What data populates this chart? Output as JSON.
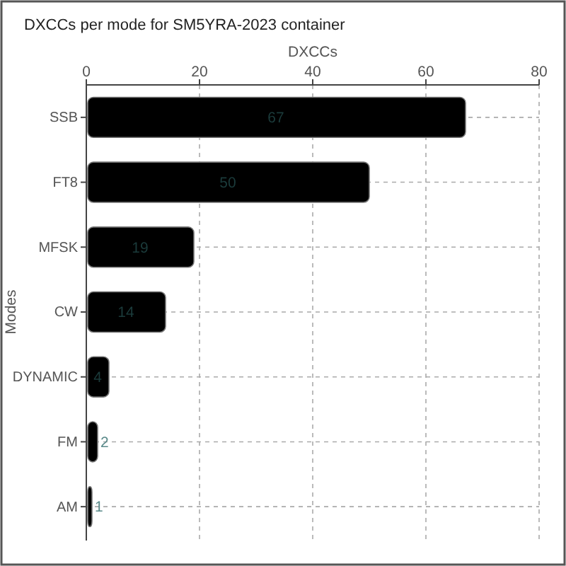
{
  "chart_data": {
    "type": "bar",
    "orientation": "horizontal",
    "title": "DXCCs per mode for SM5YRA-2023 container",
    "xlabel": "DXCCs",
    "ylabel": "Modes",
    "categories": [
      "SSB",
      "FT8",
      "MFSK",
      "CW",
      "DYNAMIC",
      "FM",
      "AM"
    ],
    "values": [
      67,
      50,
      19,
      14,
      4,
      2,
      1
    ],
    "color": "#000000",
    "xlim": [
      0,
      80
    ],
    "xticks": [
      0,
      20,
      40,
      60,
      80
    ],
    "grid": true,
    "data_labels": true
  }
}
